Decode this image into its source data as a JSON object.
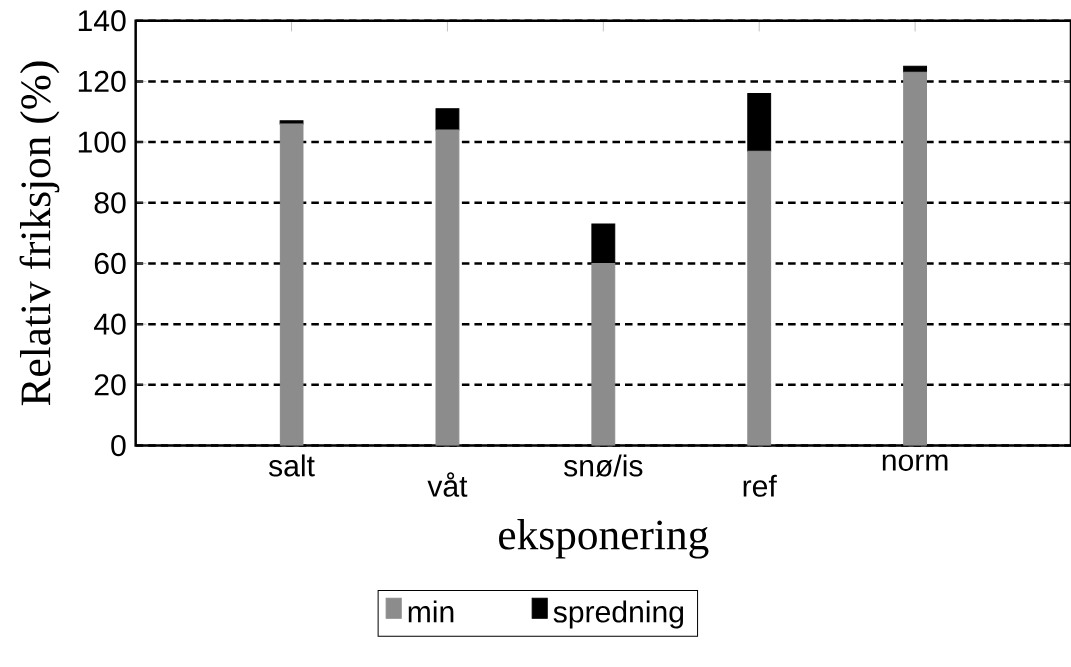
{
  "chart_data": {
    "type": "bar",
    "stacked": true,
    "xlabel": "eksponering",
    "ylabel": "Relativ friksjon (%)",
    "categories": [
      "salt",
      "våt",
      "snø/is",
      "ref",
      "norm"
    ],
    "series": [
      {
        "name": "min",
        "color": "#8c8c8c",
        "values": [
          106,
          104,
          60,
          97,
          123
        ]
      },
      {
        "name": "spredning",
        "color": "#000000",
        "values": [
          1,
          7,
          13,
          19,
          2
        ]
      }
    ],
    "ylim": [
      0,
      140
    ],
    "yticks": [
      0,
      20,
      40,
      60,
      80,
      100,
      120,
      140
    ],
    "grid": "y",
    "legend": "bottom"
  }
}
